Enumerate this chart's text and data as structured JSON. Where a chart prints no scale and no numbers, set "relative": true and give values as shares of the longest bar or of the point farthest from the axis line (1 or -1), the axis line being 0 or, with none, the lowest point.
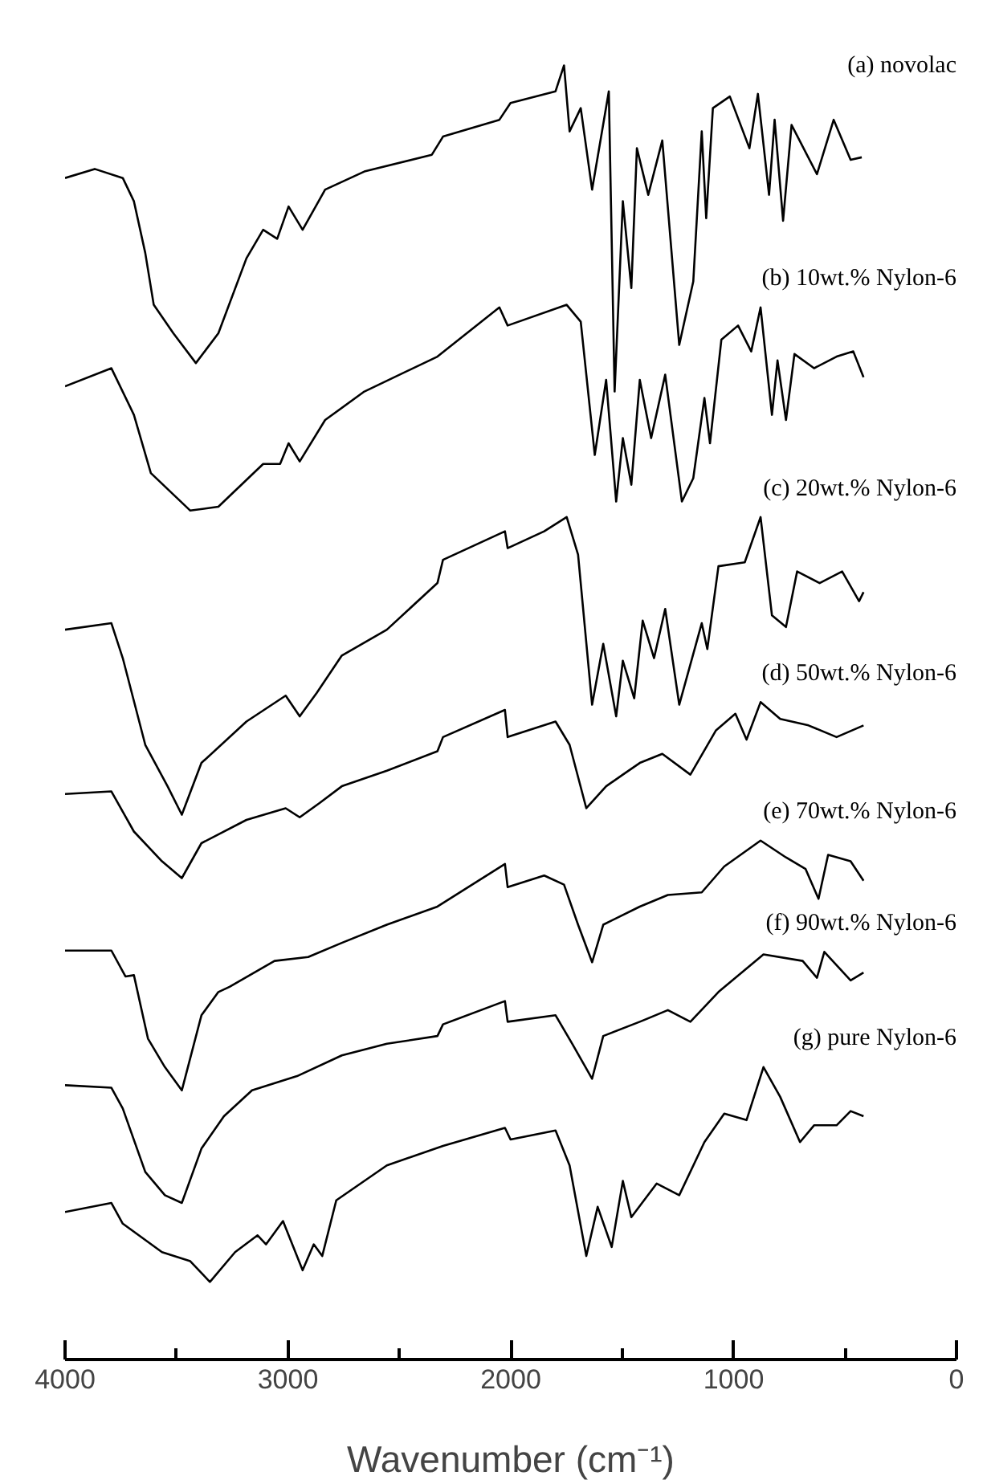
{
  "chart_data": {
    "type": "line",
    "xlabel": "Wavenumber (cm⁻¹)",
    "relative": true,
    "xlim": [
      4000,
      0
    ],
    "xticks": [
      4000,
      {
        "value": 3500,
        "label": null
      },
      3000,
      {
        "value": 2500,
        "label": null
      },
      2000,
      {
        "value": 1500,
        "label": null
      },
      1000,
      {
        "value": 500,
        "label": null
      },
      0
    ],
    "tick_labels": "x",
    "grid": false,
    "series": [
      {
        "name": "(a) novolac",
        "color": "#000000",
        "x": [
          4000,
          3867,
          3741,
          3691,
          3640,
          3602,
          3514,
          3413,
          3312,
          3186,
          3111,
          3048,
          2997,
          2934,
          2833,
          2657,
          2354,
          2304,
          2051,
          2001,
          1799,
          1761,
          1736,
          1686,
          1635,
          1560,
          1534,
          1497,
          1459,
          1434,
          1383,
          1320,
          1244,
          1181,
          1143,
          1123,
          1093,
          1017,
          929,
          891,
          841,
          816,
          778,
          740,
          626,
          551,
          475,
          425
        ],
        "values": [
          0.913,
          0.92,
          0.913,
          0.895,
          0.855,
          0.815,
          0.793,
          0.77,
          0.793,
          0.851,
          0.873,
          0.866,
          0.891,
          0.873,
          0.904,
          0.918,
          0.931,
          0.945,
          0.958,
          0.971,
          0.98,
          1.0,
          0.949,
          0.967,
          0.904,
          0.98,
          0.748,
          0.895,
          0.828,
          0.936,
          0.9,
          0.942,
          0.784,
          0.833,
          0.949,
          0.882,
          0.967,
          0.976,
          0.936,
          0.978,
          0.9,
          0.958,
          0.88,
          0.954,
          0.916,
          0.958,
          0.927,
          0.929
        ]
      },
      {
        "name": "(b) 10wt.% Nylon-6",
        "color": "#000000",
        "x": [
          4000,
          3792,
          3691,
          3615,
          3438,
          3312,
          3111,
          3035,
          2997,
          2947,
          2833,
          2657,
          2329,
          2051,
          2014,
          1749,
          1686,
          1623,
          1572,
          1527,
          1497,
          1459,
          1421,
          1370,
          1307,
          1232,
          1181,
          1131,
          1106,
          1055,
          980,
          921,
          879,
          828,
          803,
          765,
          727,
          639,
          538,
          463,
          417
        ],
        "values": [
          0.752,
          0.766,
          0.73,
          0.685,
          0.656,
          0.659,
          0.692,
          0.692,
          0.708,
          0.694,
          0.726,
          0.748,
          0.775,
          0.813,
          0.799,
          0.815,
          0.802,
          0.699,
          0.757,
          0.663,
          0.712,
          0.676,
          0.757,
          0.712,
          0.761,
          0.663,
          0.681,
          0.743,
          0.708,
          0.788,
          0.799,
          0.779,
          0.813,
          0.73,
          0.772,
          0.726,
          0.777,
          0.766,
          0.775,
          0.779,
          0.759
        ]
      },
      {
        "name": "(c) 20wt.% Nylon-6",
        "color": "#000000",
        "x": [
          4000,
          3792,
          3741,
          3640,
          3540,
          3476,
          3388,
          3186,
          3010,
          2947,
          2871,
          2758,
          2556,
          2329,
          2304,
          2026,
          2014,
          1850,
          1749,
          1698,
          1635,
          1585,
          1527,
          1497,
          1446,
          1408,
          1357,
          1307,
          1244,
          1143,
          1118,
          1068,
          950,
          879,
          828,
          765,
          715,
          614,
          513,
          437,
          417
        ],
        "values": [
          0.564,
          0.569,
          0.542,
          0.475,
          0.443,
          0.421,
          0.461,
          0.493,
          0.513,
          0.497,
          0.515,
          0.544,
          0.564,
          0.6,
          0.618,
          0.64,
          0.627,
          0.64,
          0.651,
          0.622,
          0.506,
          0.553,
          0.497,
          0.54,
          0.511,
          0.571,
          0.542,
          0.58,
          0.506,
          0.569,
          0.549,
          0.613,
          0.616,
          0.651,
          0.575,
          0.566,
          0.609,
          0.6,
          0.609,
          0.586,
          0.593
        ]
      },
      {
        "name": "(d) 50wt.% Nylon-6",
        "color": "#000000",
        "x": [
          4000,
          3792,
          3691,
          3565,
          3476,
          3388,
          3186,
          3010,
          2947,
          2858,
          2758,
          2556,
          2329,
          2304,
          2026,
          2014,
          1799,
          1736,
          1661,
          1572,
          1497,
          1421,
          1320,
          1194,
          1080,
          992,
          942,
          879,
          791,
          664,
          538,
          417
        ],
        "values": [
          0.437,
          0.439,
          0.408,
          0.385,
          0.372,
          0.399,
          0.417,
          0.426,
          0.419,
          0.43,
          0.443,
          0.455,
          0.47,
          0.481,
          0.502,
          0.481,
          0.493,
          0.475,
          0.426,
          0.443,
          0.452,
          0.461,
          0.468,
          0.452,
          0.486,
          0.499,
          0.479,
          0.508,
          0.495,
          0.49,
          0.481,
          0.49
        ]
      },
      {
        "name": "(e) 70wt.% Nylon-6",
        "color": "#000000",
        "x": [
          4000,
          3792,
          3729,
          3691,
          3628,
          3552,
          3476,
          3388,
          3312,
          3262,
          3060,
          2909,
          2758,
          2556,
          2329,
          2026,
          2014,
          1850,
          1761,
          1698,
          1635,
          1585,
          1421,
          1295,
          1143,
          1042,
          879,
          765,
          677,
          619,
          576,
          475,
          417
        ],
        "values": [
          0.316,
          0.316,
          0.296,
          0.297,
          0.248,
          0.226,
          0.208,
          0.266,
          0.284,
          0.288,
          0.308,
          0.311,
          0.322,
          0.336,
          0.35,
          0.383,
          0.365,
          0.374,
          0.367,
          0.336,
          0.307,
          0.336,
          0.35,
          0.359,
          0.361,
          0.381,
          0.401,
          0.388,
          0.379,
          0.356,
          0.39,
          0.385,
          0.37
        ]
      },
      {
        "name": "(f) 90wt.% Nylon-6",
        "color": "#000000",
        "x": [
          4000,
          3792,
          3741,
          3640,
          3552,
          3476,
          3388,
          3287,
          3161,
          2959,
          2758,
          2556,
          2329,
          2304,
          2026,
          2014,
          1799,
          1724,
          1635,
          1585,
          1421,
          1295,
          1194,
          1068,
          866,
          690,
          626,
          593,
          475,
          417
        ],
        "values": [
          0.212,
          0.21,
          0.194,
          0.145,
          0.127,
          0.121,
          0.163,
          0.188,
          0.208,
          0.219,
          0.235,
          0.244,
          0.25,
          0.259,
          0.277,
          0.261,
          0.266,
          0.244,
          0.217,
          0.25,
          0.261,
          0.27,
          0.261,
          0.284,
          0.313,
          0.308,
          0.295,
          0.315,
          0.293,
          0.299
        ]
      },
      {
        "name": "(g) pure Nylon-6",
        "color": "#000000",
        "x": [
          4000,
          3792,
          3741,
          3565,
          3438,
          3350,
          3237,
          3136,
          3098,
          3022,
          2934,
          2884,
          2846,
          2783,
          2556,
          2304,
          2026,
          2001,
          1799,
          1736,
          1661,
          1610,
          1547,
          1497,
          1459,
          1345,
          1244,
          1131,
          1042,
          942,
          866,
          791,
          702,
          639,
          538,
          475,
          417
        ],
        "values": [
          0.114,
          0.121,
          0.105,
          0.083,
          0.076,
          0.06,
          0.083,
          0.096,
          0.089,
          0.107,
          0.069,
          0.089,
          0.08,
          0.123,
          0.15,
          0.165,
          0.179,
          0.17,
          0.177,
          0.15,
          0.08,
          0.118,
          0.087,
          0.138,
          0.11,
          0.136,
          0.127,
          0.168,
          0.19,
          0.185,
          0.226,
          0.203,
          0.168,
          0.181,
          0.181,
          0.192,
          0.188
        ]
      }
    ]
  }
}
